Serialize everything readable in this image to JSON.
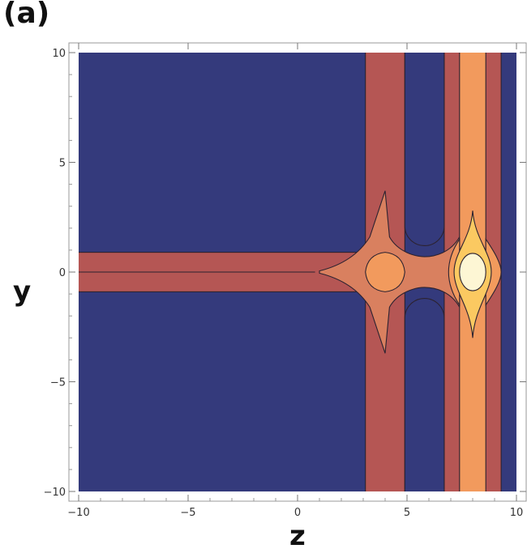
{
  "figure": {
    "panel_label": "(a)"
  },
  "chart_data": {
    "type": "contour",
    "xlabel": "z",
    "ylabel": "y",
    "xlim": [
      -10,
      10
    ],
    "ylim": [
      -10,
      10
    ],
    "xticks": [
      -10,
      -5,
      0,
      5,
      10
    ],
    "yticks": [
      -10,
      -5,
      0,
      5,
      10
    ],
    "xtick_labels": [
      "−10",
      "−5",
      "0",
      "5",
      "10"
    ],
    "ytick_labels": [
      "−10",
      "−5",
      "0",
      "5",
      "10"
    ],
    "levels_colors": [
      "#343a7c",
      "#b55654",
      "#d9805f",
      "#f29a5d",
      "#fbc961",
      "#fdf6d4"
    ],
    "features": {
      "horizontal_band": {
        "y_half_width": 0.9,
        "from_z": -10,
        "to_z": 3.2
      },
      "vertical_band_1": {
        "z_from": 3.1,
        "z_to": 4.9
      },
      "vertical_band_2": {
        "z_from": 6.7,
        "z_to": 9.3
      },
      "inner_band_2": {
        "z_from": 7.4,
        "z_to": 8.6
      },
      "node_1": {
        "z": 4.0,
        "y": 0.0,
        "half_width": 0.9,
        "half_height": 0.9
      },
      "node_2": {
        "z": 8.0,
        "y": 0.0
      },
      "hole_upper": {
        "z_from": 4.9,
        "z_to": 6.7,
        "y_bottom": 1.2
      },
      "hole_lower": {
        "z_from": 4.9,
        "z_to": 6.7,
        "y_top": -1.2
      },
      "cusp_1": {
        "z": 4.0,
        "y_extent": 3.7
      },
      "cusp_2": {
        "z": 8.0,
        "y_extent_top": 2.8,
        "y_extent_bottom": -3.0
      }
    }
  }
}
